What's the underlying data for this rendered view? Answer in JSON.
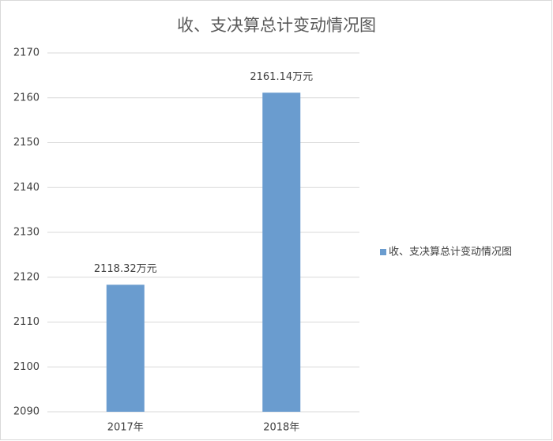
{
  "chart_data": {
    "type": "bar",
    "title": "收、支决算总计变动情况图",
    "categories": [
      "2017年",
      "2018年"
    ],
    "series": [
      {
        "name": "收、支决算总计变动情况图",
        "color": "#6a9ccf",
        "values": [
          2118.32,
          2161.14
        ],
        "value_labels": [
          "2118.32万元",
          "2161.14万元"
        ]
      }
    ],
    "ylim": [
      2090,
      2170
    ],
    "yticks": [
      2090,
      2100,
      2110,
      2120,
      2130,
      2140,
      2150,
      2160,
      2170
    ],
    "grid": true,
    "legend": "right"
  }
}
